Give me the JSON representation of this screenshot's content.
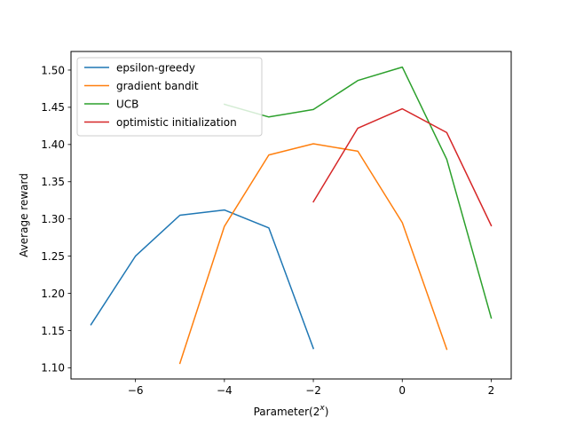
{
  "chart_data": {
    "type": "line",
    "title": "",
    "xlabel": "Parameter(2",
    "xlabel_superscript": "x",
    "xlabel_suffix": ")",
    "ylabel": "Average reward",
    "xlim": [
      -7.45,
      2.45
    ],
    "ylim": [
      1.085,
      1.525
    ],
    "xticks": [
      -6,
      -4,
      -2,
      0,
      2
    ],
    "xtick_labels": [
      "−6",
      "−4",
      "−2",
      "0",
      "2"
    ],
    "yticks": [
      1.1,
      1.15,
      1.2,
      1.25,
      1.3,
      1.35,
      1.4,
      1.45,
      1.5
    ],
    "ytick_labels": [
      "1.10",
      "1.15",
      "1.20",
      "1.25",
      "1.30",
      "1.35",
      "1.40",
      "1.45",
      "1.50"
    ],
    "grid": false,
    "legend_position": "top-left",
    "series": [
      {
        "name": "epsilon-greedy",
        "color": "#1f77b4",
        "x": [
          -7,
          -6,
          -5,
          -4,
          -3,
          -2
        ],
        "y": [
          1.158,
          1.25,
          1.305,
          1.312,
          1.288,
          1.126
        ]
      },
      {
        "name": "gradient bandit",
        "color": "#ff7f0e",
        "x": [
          -5,
          -4,
          -3,
          -2,
          -1,
          0,
          1
        ],
        "y": [
          1.106,
          1.29,
          1.386,
          1.401,
          1.391,
          1.295,
          1.125
        ]
      },
      {
        "name": "UCB",
        "color": "#2ca02c",
        "x": [
          -4,
          -3,
          -2,
          -1,
          0,
          1,
          2
        ],
        "y": [
          1.454,
          1.437,
          1.447,
          1.486,
          1.504,
          1.38,
          1.167
        ]
      },
      {
        "name": "optimistic initialization",
        "color": "#d62728",
        "x": [
          -2,
          -1,
          0,
          1,
          2
        ],
        "y": [
          1.323,
          1.422,
          1.448,
          1.416,
          1.291
        ]
      }
    ]
  }
}
